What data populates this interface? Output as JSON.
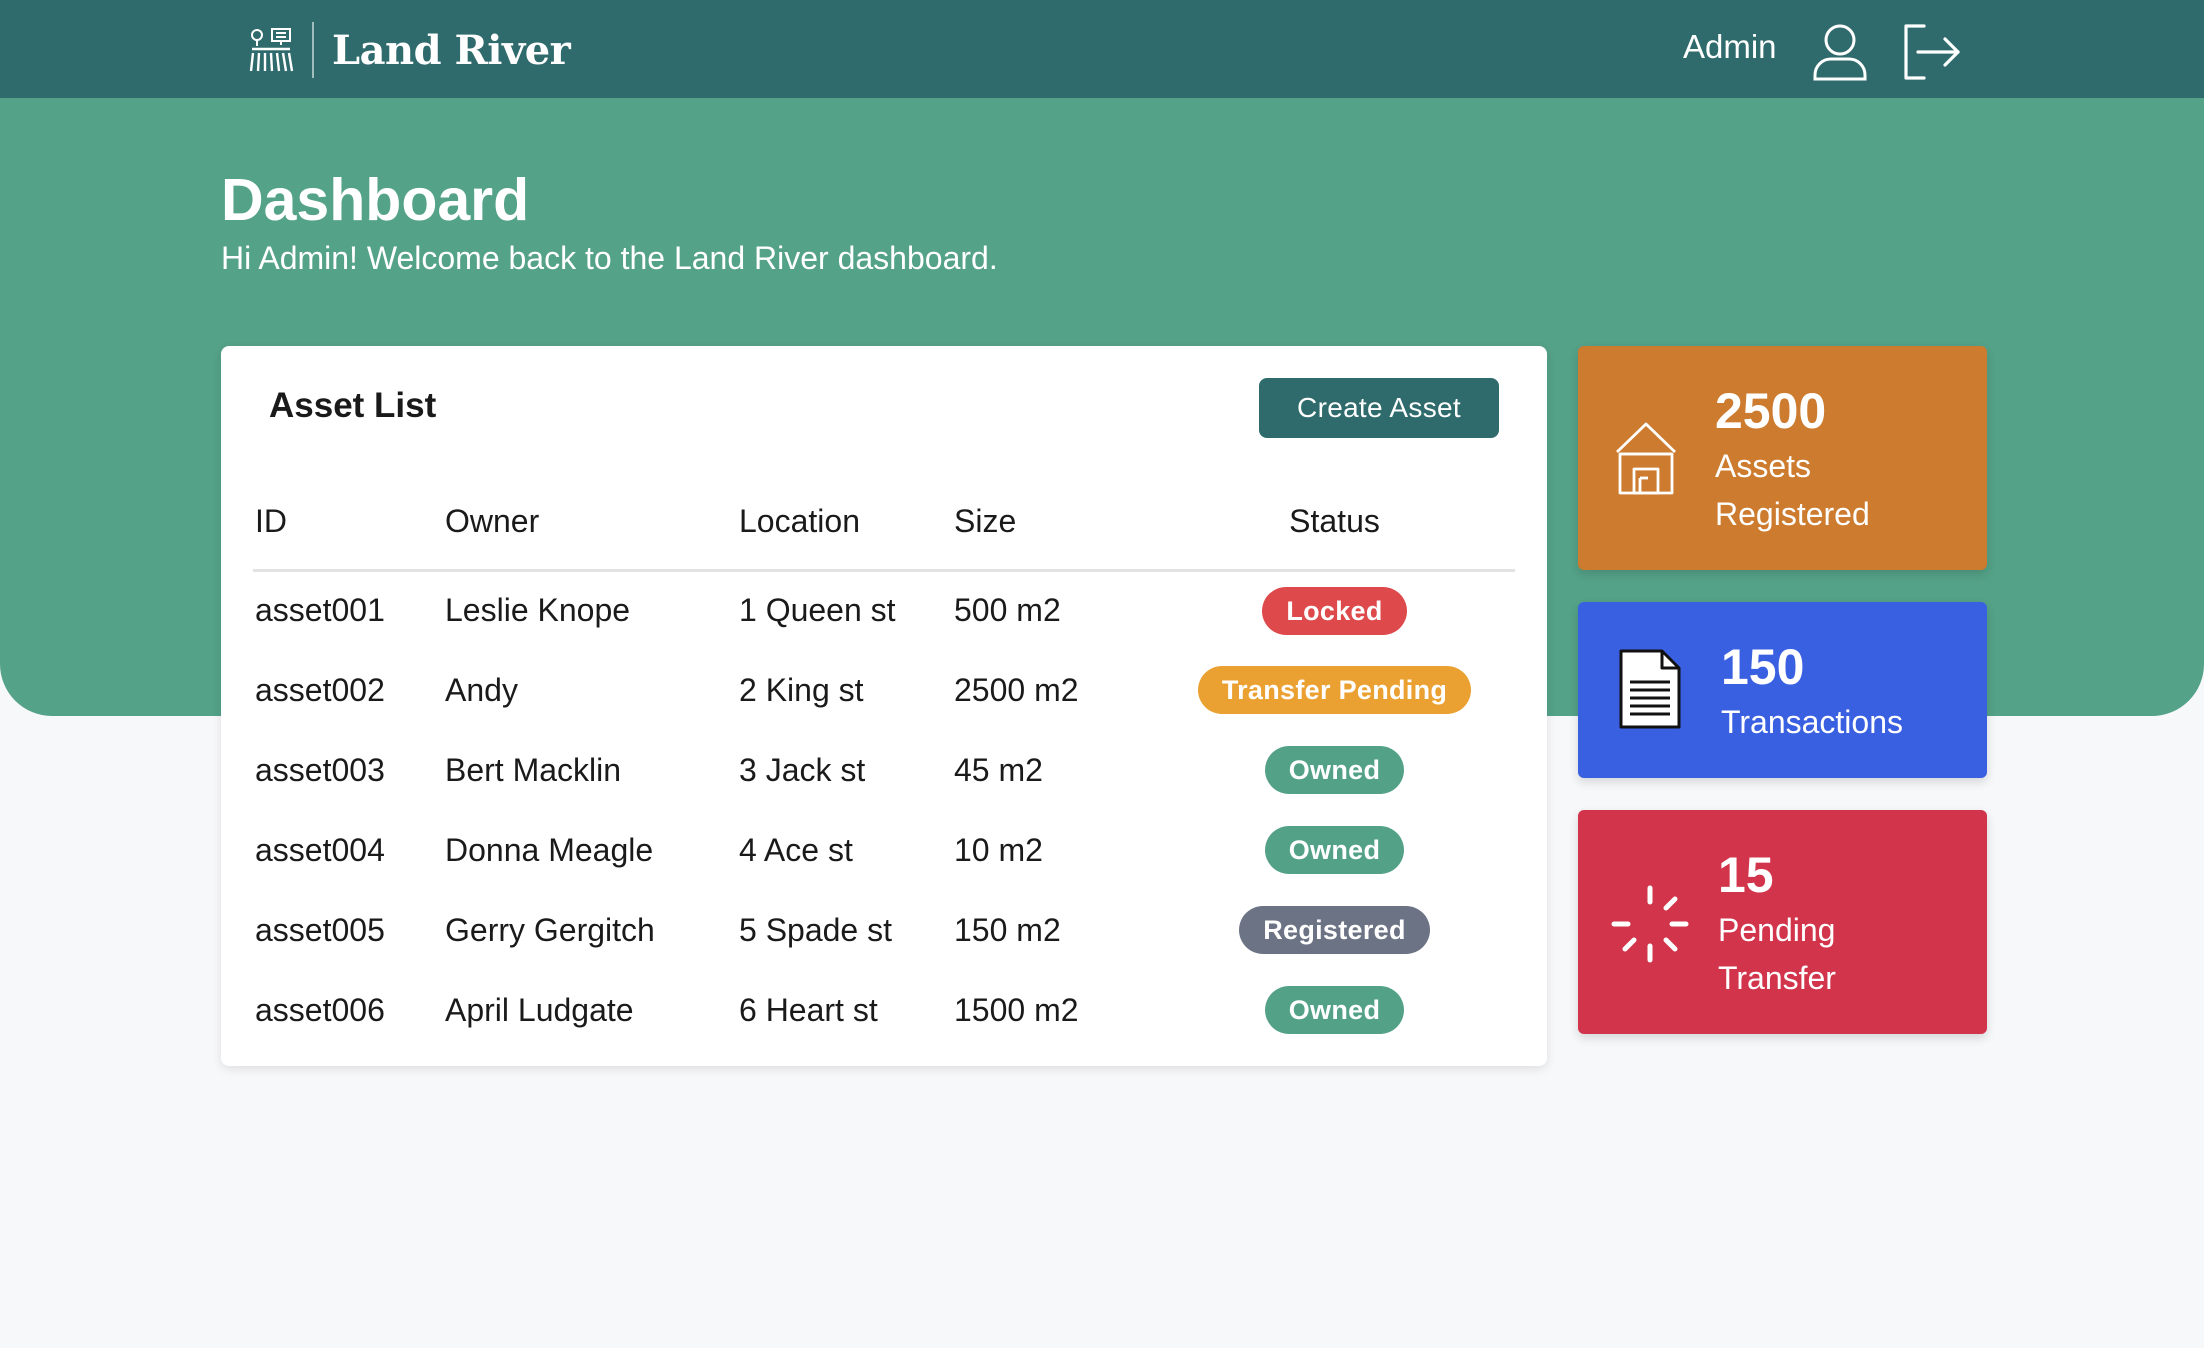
{
  "navbar": {
    "brand_name": "Land River",
    "user_name": "Admin"
  },
  "header": {
    "title": "Dashboard",
    "subtitle": "Hi Admin! Welcome back to the Land River dashboard."
  },
  "asset_list": {
    "title": "Asset List",
    "create_button_label": "Create Asset",
    "columns": [
      "ID",
      "Owner",
      "Location",
      "Size",
      "Status"
    ],
    "rows": [
      {
        "id": "asset001",
        "owner": "Leslie Knope",
        "location": "1 Queen st",
        "size": "500 m2",
        "status": "Locked"
      },
      {
        "id": "asset002",
        "owner": "Andy",
        "location": "2 King st",
        "size": "2500 m2",
        "status": "Transfer Pending"
      },
      {
        "id": "asset003",
        "owner": "Bert Macklin",
        "location": "3 Jack st",
        "size": "45 m2",
        "status": "Owned"
      },
      {
        "id": "asset004",
        "owner": "Donna Meagle",
        "location": "4 Ace st",
        "size": "10 m2",
        "status": "Owned"
      },
      {
        "id": "asset005",
        "owner": "Gerry Gergitch",
        "location": "5 Spade st",
        "size": "150 m2",
        "status": "Registered"
      },
      {
        "id": "asset006",
        "owner": "April Ludgate",
        "location": "6 Heart st",
        "size": "1500 m2",
        "status": "Owned"
      }
    ]
  },
  "status_colors": {
    "Locked": "#de4a4b",
    "Transfer Pending": "#eba132",
    "Owned": "#53a187",
    "Registered": "#6b7385"
  },
  "stats": {
    "assets": {
      "value": "2500",
      "label": "Assets Registered",
      "color": "#cc7b2f",
      "icon": "house-icon"
    },
    "transactions": {
      "value": "150",
      "label": "Transactions",
      "color": "#3a60e2",
      "icon": "document-icon"
    },
    "pending": {
      "value": "15",
      "label": "Pending Transfer",
      "color": "#d2344b",
      "icon": "spinner-icon"
    }
  },
  "theme": {
    "navbar": "#2f6b6c",
    "hero": "#54a288",
    "background": "#f7f8fa",
    "primary_button": "#2f6b6c"
  },
  "icons": {
    "brand": "land-river-logo",
    "user": "user-icon",
    "logout": "logout-icon"
  }
}
